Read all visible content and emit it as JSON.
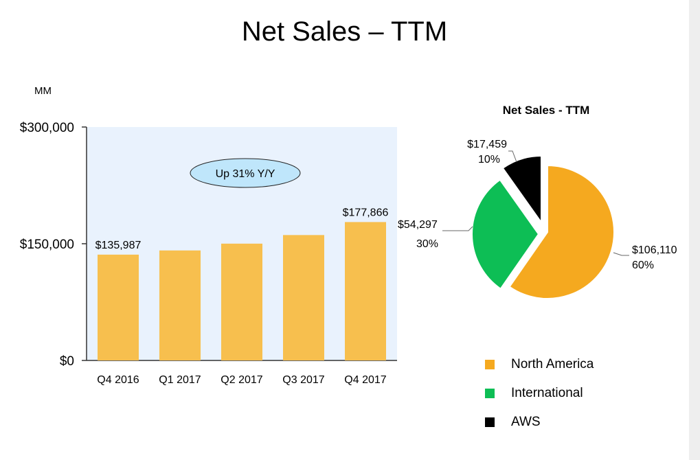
{
  "page": {
    "title": "Net Sales – TTM"
  },
  "colors": {
    "plot_bg": "#e9f2fd",
    "bar": "#f7bf4e",
    "callout_fill": "#bfe6fb",
    "north_america": "#f5a91f",
    "international": "#0dbe55",
    "aws": "#000000",
    "scrollbar": "#eeeeee"
  },
  "chart_data": [
    {
      "type": "bar",
      "title": "",
      "unit_label": "MM",
      "categories": [
        "Q4 2016",
        "Q1 2017",
        "Q2 2017",
        "Q3 2017",
        "Q4 2017"
      ],
      "values": [
        135987,
        141366,
        150116,
        161154,
        177866
      ],
      "data_labels": [
        "$135,987",
        "",
        "",
        "",
        "$177,866"
      ],
      "y_ticks": [
        "$0",
        "$150,000",
        "$300,000"
      ],
      "ylim": [
        0,
        300000
      ],
      "grid": false,
      "annotation": "Up 31% Y/Y"
    },
    {
      "type": "pie",
      "title": "Net Sales - TTM",
      "slices": [
        {
          "name": "North America",
          "value": 106110,
          "value_label": "$106,110",
          "pct_label": "60%",
          "color_key": "north_america",
          "exploded": false
        },
        {
          "name": "International",
          "value": 54297,
          "value_label": "$54,297",
          "pct_label": "30%",
          "color_key": "international",
          "exploded": true
        },
        {
          "name": "AWS",
          "value": 17459,
          "value_label": "$17,459",
          "pct_label": "10%",
          "color_key": "aws",
          "exploded": true
        }
      ],
      "legend": {
        "placement": "bottom",
        "items": [
          "North America",
          "International",
          "AWS"
        ]
      }
    }
  ]
}
